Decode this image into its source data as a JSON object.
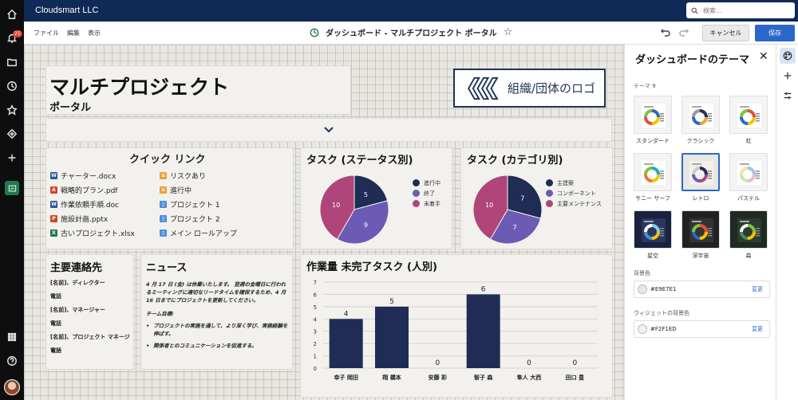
{
  "topbar": {
    "org": "Cloudsmart LLC",
    "search_placeholder": "検索..."
  },
  "rail": {
    "notification_count": "25"
  },
  "toolbar": {
    "menus": [
      "ファイル",
      "編集",
      "表示"
    ],
    "title": "ダッシュボード - マルチプロジェクト ポータル",
    "cancel": "キャンセル",
    "save": "保存"
  },
  "hero": {
    "title": "マルチプロジェクト",
    "subtitle": "ポータル",
    "logo_text": "組織/団体のロゴ"
  },
  "quick_links": {
    "title": "クイック リンク",
    "left": [
      {
        "label": "チャーター.docx",
        "type": "word",
        "color": "#2b5797"
      },
      {
        "label": "戦略的プラン.pdf",
        "type": "pdf",
        "color": "#d9402a"
      },
      {
        "label": "作業依頼手順.doc",
        "type": "word",
        "color": "#2b5797"
      },
      {
        "label": "施設計画.pptx",
        "type": "ppt",
        "color": "#d24726"
      },
      {
        "label": "古いプロジェクト.xlsx",
        "type": "excel",
        "color": "#1f7a4d"
      }
    ],
    "right": [
      {
        "label": "リスクあり",
        "type": "list",
        "color": "#e8a33d"
      },
      {
        "label": "進行中",
        "type": "list",
        "color": "#e8a33d"
      },
      {
        "label": "プロジェクト 1",
        "type": "page",
        "color": "#4a90d9"
      },
      {
        "label": "プロジェクト 2",
        "type": "page",
        "color": "#4a90d9"
      },
      {
        "label": "メイン ロールアップ",
        "type": "page",
        "color": "#4a90d9"
      }
    ]
  },
  "chart_data": [
    {
      "type": "pie",
      "title": "タスク (ステータス別)",
      "categories": [
        "進行中",
        "終了",
        "未着手"
      ],
      "values": [
        5,
        9,
        10
      ],
      "colors": [
        "#1f2d55",
        "#6b5bb5",
        "#b0457a"
      ],
      "legend": "right"
    },
    {
      "type": "pie",
      "title": "タスク (カテゴリ別)",
      "categories": [
        "主建築",
        "コンポーネント",
        "主要メンテナンス"
      ],
      "values": [
        7,
        7,
        10
      ],
      "colors": [
        "#1f2d55",
        "#6b5bb5",
        "#b0457a"
      ],
      "legend": "right"
    },
    {
      "type": "bar",
      "title": "作業量 未完了タスク (人別)",
      "categories": [
        "幸子 岡田",
        "翔 橋本",
        "安藤 彩",
        "智子 森",
        "隼人 大西",
        "田口 豊"
      ],
      "values": [
        4,
        5,
        0,
        6,
        0,
        0
      ],
      "ylim": [
        0,
        7
      ],
      "yticks": [
        0,
        1,
        2,
        3,
        4,
        5,
        6,
        7
      ],
      "grid": true,
      "color": "#1f2d55"
    }
  ],
  "contacts": {
    "title": "主要連絡先",
    "items": [
      "[名前]、ディレクター",
      "電話",
      "[名前]、マネージャー",
      "電話",
      "[名前]、プロジェクト マネージャー",
      "電話"
    ]
  },
  "news": {
    "title": "ニュース",
    "body": "4 月 17 日 (金) は休業いたします。 翌週の金曜日に行われるミーティングに適切なリードタイムを確保するため、4 月 16 日までにプロジェクトを更新してください。",
    "goal_heading": "チーム目標:",
    "goals": [
      "プロジェクトの実施を通して、より深く学び、実務経験を伸ばす。",
      "関係者とのコミュニケーションを促進する。"
    ]
  },
  "panel": {
    "title": "ダッシュボードのテーマ",
    "themes_label": "テーマ 9",
    "themes": [
      {
        "name": "スタンダード",
        "bg": "#f4f4f4",
        "inner": "#ffffff"
      },
      {
        "name": "クラシック",
        "bg": "#f4f4f4",
        "inner": "#ffffff"
      },
      {
        "name": "虹",
        "bg": "#f4f4f4",
        "inner": "#ffffff"
      },
      {
        "name": "サニー サーフ",
        "bg": "#f4f4f4",
        "inner": "#ffffff"
      },
      {
        "name": "レトロ",
        "bg": "#e9e7e1",
        "inner": "#f2f1ed"
      },
      {
        "name": "パステル",
        "bg": "#f4f4f4",
        "inner": "#ffffff"
      },
      {
        "name": "星空",
        "bg": "#1a2240",
        "inner": "#2a3560"
      },
      {
        "name": "深宇宙",
        "bg": "#222222",
        "inner": "#333333"
      },
      {
        "name": "森",
        "bg": "#1e2a22",
        "inner": "#2c3b30"
      }
    ],
    "bg_label": "背景色",
    "bg_color": "#E9E7E1",
    "widget_label": "ウィジェットの背景色",
    "widget_color": "#F2F1ED",
    "change": "変更"
  }
}
